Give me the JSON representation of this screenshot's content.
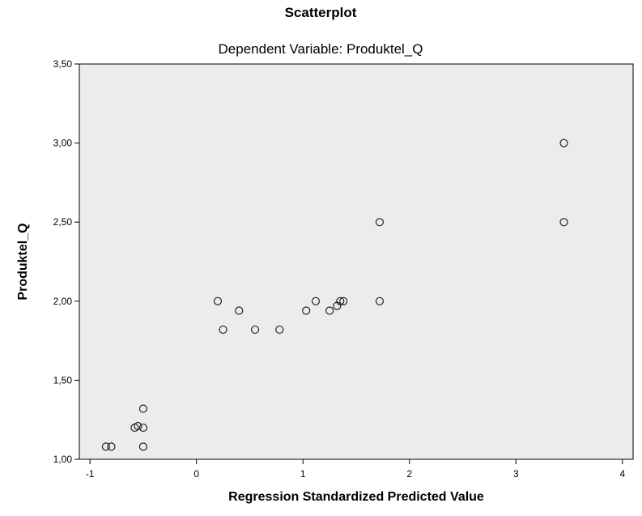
{
  "chart_data": {
    "type": "scatter",
    "title": "Scatterplot",
    "subtitle": "Dependent Variable: Produktel_Q",
    "xlabel": "Regression Standardized Predicted Value",
    "ylabel": "Produktel_Q",
    "xlim": [
      -1.1,
      4.1
    ],
    "ylim": [
      1.0,
      3.5
    ],
    "x_ticks": [
      -1,
      0,
      1,
      2,
      3,
      4
    ],
    "y_ticks": [
      1.0,
      1.5,
      2.0,
      2.5,
      3.0,
      3.5
    ],
    "x_tick_labels": [
      "-1",
      "0",
      "1",
      "2",
      "3",
      "4"
    ],
    "y_tick_labels": [
      "1,00",
      "1,50",
      "2,00",
      "2,50",
      "3,00",
      "3,50"
    ],
    "grid": false,
    "marker": "circle",
    "colors": {
      "plot_background": "#ececec",
      "marker_stroke": "#222222",
      "axis": "#000000"
    },
    "points": [
      {
        "x": -0.85,
        "y": 1.08
      },
      {
        "x": -0.8,
        "y": 1.08
      },
      {
        "x": -0.5,
        "y": 1.08
      },
      {
        "x": -0.58,
        "y": 1.2
      },
      {
        "x": -0.5,
        "y": 1.2
      },
      {
        "x": -0.55,
        "y": 1.21
      },
      {
        "x": -0.5,
        "y": 1.32
      },
      {
        "x": 0.2,
        "y": 2.0
      },
      {
        "x": 0.4,
        "y": 1.94
      },
      {
        "x": 0.25,
        "y": 1.82
      },
      {
        "x": 0.55,
        "y": 1.82
      },
      {
        "x": 0.78,
        "y": 1.82
      },
      {
        "x": 1.03,
        "y": 1.94
      },
      {
        "x": 1.12,
        "y": 2.0
      },
      {
        "x": 1.25,
        "y": 1.94
      },
      {
        "x": 1.32,
        "y": 1.97
      },
      {
        "x": 1.35,
        "y": 2.0
      },
      {
        "x": 1.38,
        "y": 2.0
      },
      {
        "x": 1.72,
        "y": 2.0
      },
      {
        "x": 1.72,
        "y": 2.5
      },
      {
        "x": 3.45,
        "y": 2.5
      },
      {
        "x": 3.45,
        "y": 3.0
      }
    ]
  }
}
